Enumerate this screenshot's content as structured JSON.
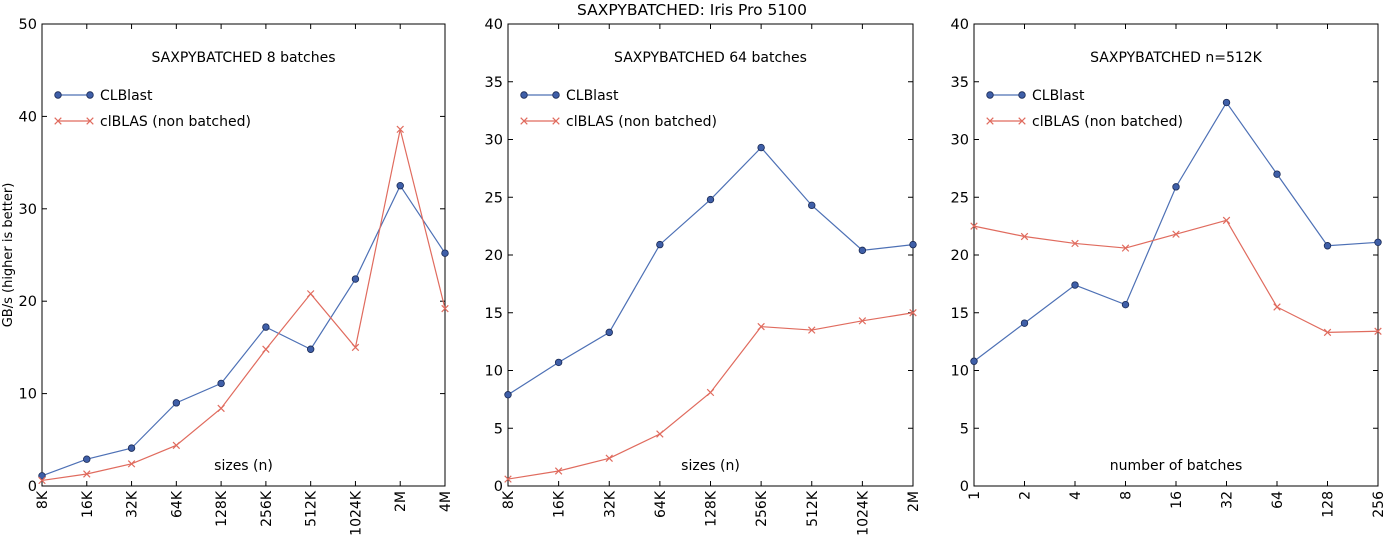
{
  "figure_title": "SAXPYBATCHED: Iris Pro 5100",
  "ylabel": "GB/s (higher is better)",
  "colors": {
    "clblast": "#4d70b5",
    "clblast_marker": "#3f5fa8",
    "clblas": "#e06b5e"
  },
  "chart_data": [
    {
      "type": "line",
      "title": "SAXPYBATCHED 8 batches",
      "xlabel": "sizes (n)",
      "ylabel": "GB/s (higher is better)",
      "categories": [
        "8K",
        "16K",
        "32K",
        "64K",
        "128K",
        "256K",
        "512K",
        "1024K",
        "2M",
        "4M"
      ],
      "ylim": [
        0,
        50
      ],
      "yticks": [
        "0",
        "10",
        "20",
        "30",
        "40",
        "50"
      ],
      "legend_position": "top-left",
      "series": [
        {
          "name": "CLBlast",
          "marker": "circle",
          "values": [
            1.1,
            2.9,
            4.1,
            9.0,
            11.1,
            17.2,
            14.8,
            22.4,
            32.5,
            25.2
          ]
        },
        {
          "name": "clBLAS (non batched)",
          "marker": "x",
          "values": [
            0.6,
            1.3,
            2.4,
            4.4,
            8.4,
            14.8,
            20.8,
            15.0,
            38.6,
            19.2
          ]
        }
      ]
    },
    {
      "type": "line",
      "title": "SAXPYBATCHED 64 batches",
      "xlabel": "sizes (n)",
      "ylabel": "",
      "categories": [
        "8K",
        "16K",
        "32K",
        "64K",
        "128K",
        "256K",
        "512K",
        "1024K",
        "2M"
      ],
      "ylim": [
        0,
        40
      ],
      "yticks": [
        "0",
        "5",
        "10",
        "15",
        "20",
        "25",
        "30",
        "35",
        "40"
      ],
      "legend_position": "top-left",
      "series": [
        {
          "name": "CLBlast",
          "marker": "circle",
          "values": [
            7.9,
            10.7,
            13.3,
            20.9,
            24.8,
            29.3,
            24.3,
            20.4,
            20.9
          ]
        },
        {
          "name": "clBLAS (non batched)",
          "marker": "x",
          "values": [
            0.6,
            1.3,
            2.4,
            4.5,
            8.1,
            13.8,
            13.5,
            14.3,
            15.0
          ]
        }
      ]
    },
    {
      "type": "line",
      "title": "SAXPYBATCHED n=512K",
      "xlabel": "number of batches",
      "ylabel": "",
      "categories": [
        "1",
        "2",
        "4",
        "8",
        "16",
        "32",
        "64",
        "128",
        "256"
      ],
      "ylim": [
        0,
        40
      ],
      "yticks": [
        "0",
        "5",
        "10",
        "15",
        "20",
        "25",
        "30",
        "35",
        "40"
      ],
      "legend_position": "top-left",
      "series": [
        {
          "name": "CLBlast",
          "marker": "circle",
          "values": [
            10.8,
            14.1,
            17.4,
            15.7,
            25.9,
            33.2,
            27.0,
            20.8,
            21.1
          ]
        },
        {
          "name": "clBLAS (non batched)",
          "marker": "x",
          "values": [
            22.5,
            21.6,
            21.0,
            20.6,
            21.8,
            23.0,
            15.5,
            13.3,
            13.4
          ]
        }
      ]
    }
  ]
}
